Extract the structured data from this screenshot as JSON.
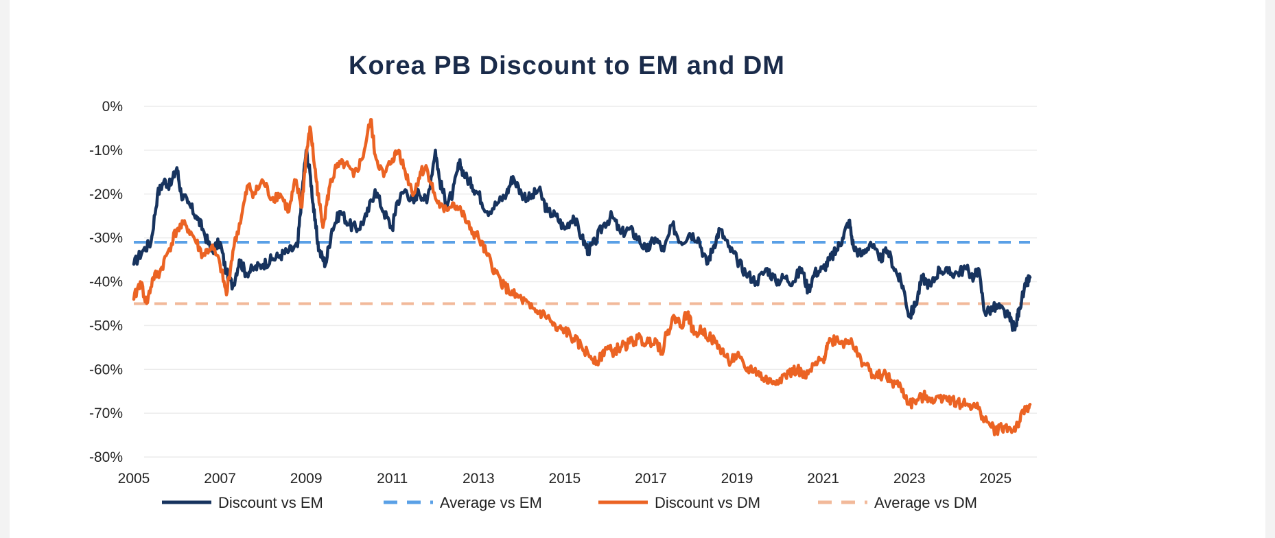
{
  "chart_data": {
    "type": "line",
    "title": "Korea PB Discount to EM and DM",
    "xlabel": "",
    "ylabel": "",
    "xlim": [
      2005,
      2025.8
    ],
    "ylim": [
      -80,
      0
    ],
    "x_ticks": [
      2005,
      2007,
      2009,
      2011,
      2013,
      2015,
      2017,
      2019,
      2021,
      2023,
      2025
    ],
    "x_tick_labels": [
      "2005",
      "2007",
      "2009",
      "2011",
      "2013",
      "2015",
      "2017",
      "2019",
      "2021",
      "2023",
      "2025"
    ],
    "y_ticks": [
      0,
      -10,
      -20,
      -30,
      -40,
      -50,
      -60,
      -70,
      -80
    ],
    "y_tick_labels": [
      "0%",
      "-10%",
      "-20%",
      "-30%",
      "-40%",
      "-50%",
      "-60%",
      "-70%",
      "-80%"
    ],
    "grid": true,
    "legend_position": "bottom",
    "colors": {
      "discount_em": "#17335e",
      "average_em": "#5aa0e6",
      "discount_dm": "#eb6323",
      "average_dm": "#f2b99a"
    },
    "series": [
      {
        "name": "Discount vs EM",
        "style": "solid",
        "points": [
          [
            2005.0,
            -36
          ],
          [
            2005.2,
            -33
          ],
          [
            2005.4,
            -31
          ],
          [
            2005.55,
            -20
          ],
          [
            2005.7,
            -17
          ],
          [
            2005.85,
            -18
          ],
          [
            2006.0,
            -14
          ],
          [
            2006.1,
            -20
          ],
          [
            2006.25,
            -22
          ],
          [
            2006.45,
            -25
          ],
          [
            2006.6,
            -28
          ],
          [
            2006.8,
            -33
          ],
          [
            2007.0,
            -31
          ],
          [
            2007.15,
            -38
          ],
          [
            2007.3,
            -41
          ],
          [
            2007.45,
            -35
          ],
          [
            2007.6,
            -38
          ],
          [
            2007.8,
            -37
          ],
          [
            2008.0,
            -36
          ],
          [
            2008.2,
            -35
          ],
          [
            2008.4,
            -34
          ],
          [
            2008.6,
            -33
          ],
          [
            2008.8,
            -32
          ],
          [
            2008.9,
            -20
          ],
          [
            2009.0,
            -10
          ],
          [
            2009.1,
            -16
          ],
          [
            2009.2,
            -26
          ],
          [
            2009.3,
            -33
          ],
          [
            2009.45,
            -36
          ],
          [
            2009.6,
            -28
          ],
          [
            2009.8,
            -24
          ],
          [
            2010.0,
            -27
          ],
          [
            2010.2,
            -28
          ],
          [
            2010.4,
            -25
          ],
          [
            2010.6,
            -19
          ],
          [
            2010.8,
            -24
          ],
          [
            2011.0,
            -28
          ],
          [
            2011.1,
            -22
          ],
          [
            2011.3,
            -19
          ],
          [
            2011.5,
            -22
          ],
          [
            2011.6,
            -19
          ],
          [
            2011.8,
            -22
          ],
          [
            2012.0,
            -10
          ],
          [
            2012.1,
            -17
          ],
          [
            2012.25,
            -22
          ],
          [
            2012.4,
            -20
          ],
          [
            2012.55,
            -13
          ],
          [
            2012.7,
            -16
          ],
          [
            2012.85,
            -18
          ],
          [
            2013.0,
            -20
          ],
          [
            2013.2,
            -24
          ],
          [
            2013.45,
            -22
          ],
          [
            2013.65,
            -20
          ],
          [
            2013.8,
            -16
          ],
          [
            2014.0,
            -20
          ],
          [
            2014.2,
            -21
          ],
          [
            2014.4,
            -19
          ],
          [
            2014.6,
            -24
          ],
          [
            2014.8,
            -25
          ],
          [
            2015.0,
            -28
          ],
          [
            2015.2,
            -25
          ],
          [
            2015.4,
            -30
          ],
          [
            2015.55,
            -33
          ],
          [
            2015.7,
            -31
          ],
          [
            2015.9,
            -27
          ],
          [
            2016.1,
            -25
          ],
          [
            2016.3,
            -29
          ],
          [
            2016.5,
            -28
          ],
          [
            2016.7,
            -30
          ],
          [
            2016.9,
            -33
          ],
          [
            2017.1,
            -30
          ],
          [
            2017.3,
            -33
          ],
          [
            2017.5,
            -27
          ],
          [
            2017.7,
            -31
          ],
          [
            2017.9,
            -29
          ],
          [
            2018.1,
            -30
          ],
          [
            2018.3,
            -36
          ],
          [
            2018.45,
            -32
          ],
          [
            2018.6,
            -28
          ],
          [
            2018.8,
            -32
          ],
          [
            2019.0,
            -35
          ],
          [
            2019.2,
            -38
          ],
          [
            2019.45,
            -40
          ],
          [
            2019.7,
            -37
          ],
          [
            2019.9,
            -40
          ],
          [
            2020.1,
            -39
          ],
          [
            2020.3,
            -40
          ],
          [
            2020.5,
            -37
          ],
          [
            2020.65,
            -42
          ],
          [
            2020.8,
            -38
          ],
          [
            2021.0,
            -37
          ],
          [
            2021.15,
            -35
          ],
          [
            2021.3,
            -33
          ],
          [
            2021.45,
            -30
          ],
          [
            2021.6,
            -26
          ],
          [
            2021.7,
            -32
          ],
          [
            2021.9,
            -34
          ],
          [
            2022.1,
            -31
          ],
          [
            2022.3,
            -35
          ],
          [
            2022.5,
            -33
          ],
          [
            2022.7,
            -38
          ],
          [
            2022.85,
            -41
          ],
          [
            2023.0,
            -48
          ],
          [
            2023.15,
            -45
          ],
          [
            2023.3,
            -39
          ],
          [
            2023.5,
            -41
          ],
          [
            2023.7,
            -37
          ],
          [
            2023.9,
            -38
          ],
          [
            2024.1,
            -38
          ],
          [
            2024.3,
            -37
          ],
          [
            2024.5,
            -39
          ],
          [
            2024.6,
            -37
          ],
          [
            2024.75,
            -47
          ],
          [
            2024.95,
            -46
          ],
          [
            2025.1,
            -46
          ],
          [
            2025.3,
            -48
          ],
          [
            2025.45,
            -51
          ],
          [
            2025.55,
            -46
          ],
          [
            2025.7,
            -41
          ],
          [
            2025.8,
            -39
          ]
        ]
      },
      {
        "name": "Average vs EM",
        "style": "dashed",
        "points": [
          [
            2005.0,
            -31
          ],
          [
            2025.8,
            -31
          ]
        ]
      },
      {
        "name": "Discount vs DM",
        "style": "solid",
        "points": [
          [
            2005.0,
            -44
          ],
          [
            2005.15,
            -40
          ],
          [
            2005.3,
            -45
          ],
          [
            2005.45,
            -39
          ],
          [
            2005.6,
            -38
          ],
          [
            2005.8,
            -33
          ],
          [
            2006.0,
            -28
          ],
          [
            2006.2,
            -27
          ],
          [
            2006.4,
            -30
          ],
          [
            2006.6,
            -34
          ],
          [
            2006.8,
            -32
          ],
          [
            2007.0,
            -36
          ],
          [
            2007.15,
            -43
          ],
          [
            2007.3,
            -33
          ],
          [
            2007.5,
            -25
          ],
          [
            2007.65,
            -18
          ],
          [
            2007.8,
            -20
          ],
          [
            2008.0,
            -17
          ],
          [
            2008.2,
            -21
          ],
          [
            2008.4,
            -20
          ],
          [
            2008.6,
            -24
          ],
          [
            2008.75,
            -17
          ],
          [
            2008.9,
            -23
          ],
          [
            2009.0,
            -11
          ],
          [
            2009.1,
            -5
          ],
          [
            2009.2,
            -14
          ],
          [
            2009.3,
            -22
          ],
          [
            2009.4,
            -27
          ],
          [
            2009.55,
            -18
          ],
          [
            2009.7,
            -14
          ],
          [
            2009.9,
            -13
          ],
          [
            2010.1,
            -16
          ],
          [
            2010.3,
            -12
          ],
          [
            2010.5,
            -3
          ],
          [
            2010.6,
            -11
          ],
          [
            2010.8,
            -16
          ],
          [
            2011.0,
            -12
          ],
          [
            2011.15,
            -10
          ],
          [
            2011.3,
            -15
          ],
          [
            2011.5,
            -20
          ],
          [
            2011.65,
            -15
          ],
          [
            2011.8,
            -14
          ],
          [
            2012.0,
            -21
          ],
          [
            2012.2,
            -24
          ],
          [
            2012.4,
            -22
          ],
          [
            2012.6,
            -24
          ],
          [
            2012.8,
            -28
          ],
          [
            2013.0,
            -30
          ],
          [
            2013.2,
            -34
          ],
          [
            2013.4,
            -38
          ],
          [
            2013.6,
            -41
          ],
          [
            2013.8,
            -43
          ],
          [
            2014.0,
            -44
          ],
          [
            2014.2,
            -46
          ],
          [
            2014.4,
            -47
          ],
          [
            2014.6,
            -48
          ],
          [
            2014.8,
            -51
          ],
          [
            2015.0,
            -51
          ],
          [
            2015.2,
            -53
          ],
          [
            2015.4,
            -55
          ],
          [
            2015.6,
            -57
          ],
          [
            2015.8,
            -58
          ],
          [
            2015.95,
            -55
          ],
          [
            2016.1,
            -56
          ],
          [
            2016.3,
            -55
          ],
          [
            2016.5,
            -54
          ],
          [
            2016.7,
            -53
          ],
          [
            2016.9,
            -54
          ],
          [
            2017.1,
            -53
          ],
          [
            2017.25,
            -56
          ],
          [
            2017.4,
            -51
          ],
          [
            2017.55,
            -48
          ],
          [
            2017.7,
            -50
          ],
          [
            2017.85,
            -47
          ],
          [
            2018.0,
            -52
          ],
          [
            2018.2,
            -51
          ],
          [
            2018.4,
            -53
          ],
          [
            2018.6,
            -55
          ],
          [
            2018.8,
            -58
          ],
          [
            2019.0,
            -57
          ],
          [
            2019.2,
            -60
          ],
          [
            2019.4,
            -60
          ],
          [
            2019.6,
            -62
          ],
          [
            2019.8,
            -63
          ],
          [
            2020.0,
            -62
          ],
          [
            2020.2,
            -61
          ],
          [
            2020.4,
            -60
          ],
          [
            2020.6,
            -62
          ],
          [
            2020.8,
            -59
          ],
          [
            2021.0,
            -58
          ],
          [
            2021.1,
            -54
          ],
          [
            2021.3,
            -53
          ],
          [
            2021.5,
            -54
          ],
          [
            2021.65,
            -53
          ],
          [
            2021.8,
            -57
          ],
          [
            2022.0,
            -59
          ],
          [
            2022.2,
            -62
          ],
          [
            2022.4,
            -61
          ],
          [
            2022.6,
            -63
          ],
          [
            2022.8,
            -64
          ],
          [
            2023.0,
            -68
          ],
          [
            2023.2,
            -67
          ],
          [
            2023.4,
            -66
          ],
          [
            2023.6,
            -67
          ],
          [
            2023.8,
            -66
          ],
          [
            2024.0,
            -67
          ],
          [
            2024.2,
            -68
          ],
          [
            2024.4,
            -68
          ],
          [
            2024.6,
            -69
          ],
          [
            2024.8,
            -72
          ],
          [
            2025.0,
            -74
          ],
          [
            2025.2,
            -73
          ],
          [
            2025.4,
            -74
          ],
          [
            2025.55,
            -72
          ],
          [
            2025.7,
            -69
          ],
          [
            2025.8,
            -68
          ]
        ]
      },
      {
        "name": "Average vs DM",
        "style": "dashed",
        "points": [
          [
            2005.0,
            -45
          ],
          [
            2025.8,
            -45
          ]
        ]
      }
    ]
  }
}
